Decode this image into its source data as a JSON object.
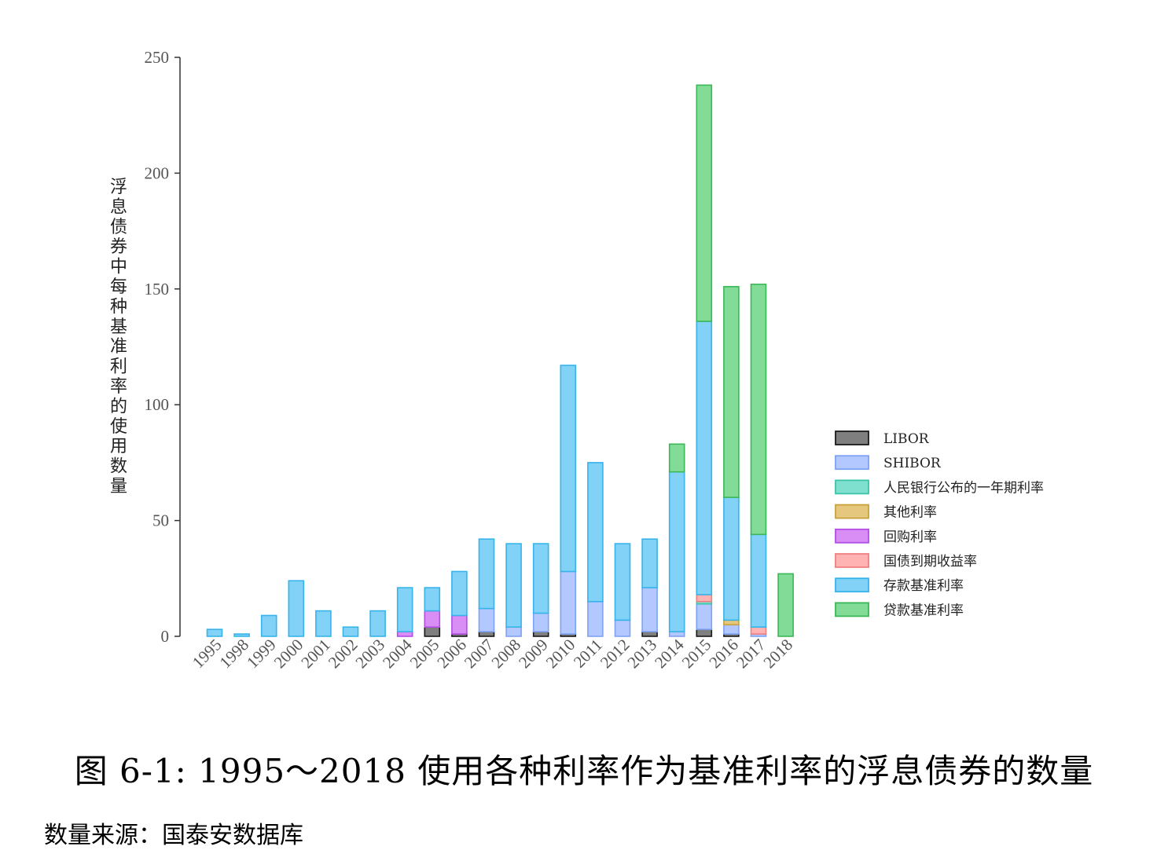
{
  "figure": {
    "caption": "图 6-1: 1995～2018 使用各种利率作为基准利率的浮息债券的数量",
    "source": "数量来源：国泰安数据库"
  },
  "chart_data": {
    "type": "bar",
    "stacked": true,
    "ylabel": "浮息债券中每种基准利率的使用数量",
    "xlabel": "",
    "ylim": [
      0,
      250
    ],
    "yticks": [
      0,
      50,
      100,
      150,
      200,
      250
    ],
    "grid": false,
    "legend_position": "right",
    "categories": [
      "1995",
      "1998",
      "1999",
      "2000",
      "2001",
      "2002",
      "2003",
      "2004",
      "2005",
      "2006",
      "2007",
      "2008",
      "2009",
      "2010",
      "2011",
      "2012",
      "2013",
      "2014",
      "2015",
      "2016",
      "2017",
      "2018"
    ],
    "series": [
      {
        "name": "LIBOR",
        "color": "#7f7f7f",
        "stroke": "#1a1a1a",
        "values": [
          0,
          0,
          0,
          0,
          0,
          0,
          0,
          0,
          4,
          1,
          2,
          0,
          2,
          1,
          0,
          0,
          2,
          0,
          3,
          1,
          0,
          0
        ]
      },
      {
        "name": "SHIBOR",
        "color": "#b3c8ff",
        "stroke": "#7ea2f5",
        "values": [
          0,
          0,
          0,
          0,
          0,
          0,
          0,
          0,
          0,
          0,
          10,
          4,
          8,
          27,
          15,
          7,
          19,
          2,
          11,
          4,
          1,
          0
        ]
      },
      {
        "name": "人民银行公布的一年期利率",
        "color": "#7fe0d0",
        "stroke": "#3cc4a8",
        "values": [
          0,
          0,
          0,
          0,
          0,
          0,
          0,
          0,
          0,
          0,
          0,
          0,
          0,
          0,
          0,
          0,
          0,
          0,
          1,
          0,
          0,
          0
        ]
      },
      {
        "name": "其他利率",
        "color": "#e6c77e",
        "stroke": "#c9a23c",
        "values": [
          0,
          0,
          0,
          0,
          0,
          0,
          0,
          0,
          0,
          0,
          0,
          0,
          0,
          0,
          0,
          0,
          0,
          0,
          0,
          2,
          0,
          0
        ]
      },
      {
        "name": "回购利率",
        "color": "#d98ef5",
        "stroke": "#b24ee6",
        "values": [
          0,
          0,
          0,
          0,
          0,
          0,
          0,
          2,
          7,
          8,
          0,
          0,
          0,
          0,
          0,
          0,
          0,
          0,
          0,
          0,
          0,
          0
        ]
      },
      {
        "name": "国债到期收益率",
        "color": "#ffb3b3",
        "stroke": "#f08080",
        "values": [
          0,
          0,
          0,
          0,
          0,
          0,
          0,
          0,
          0,
          0,
          0,
          0,
          0,
          0,
          0,
          0,
          0,
          0,
          3,
          0,
          3,
          0
        ]
      },
      {
        "name": "存款基准利率",
        "color": "#82d2f7",
        "stroke": "#36b4ea",
        "values": [
          3,
          1,
          9,
          24,
          11,
          4,
          11,
          19,
          10,
          19,
          30,
          36,
          30,
          89,
          60,
          33,
          21,
          69,
          118,
          53,
          40,
          0
        ]
      },
      {
        "name": "贷款基准利率",
        "color": "#82dc98",
        "stroke": "#3ab856",
        "values": [
          0,
          0,
          0,
          0,
          0,
          0,
          0,
          0,
          0,
          0,
          0,
          0,
          0,
          0,
          0,
          0,
          0,
          12,
          102,
          91,
          108,
          27
        ]
      }
    ]
  }
}
